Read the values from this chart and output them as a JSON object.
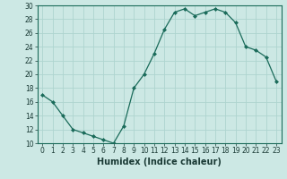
{
  "x": [
    0,
    1,
    2,
    3,
    4,
    5,
    6,
    7,
    8,
    9,
    10,
    11,
    12,
    13,
    14,
    15,
    16,
    17,
    18,
    19,
    20,
    21,
    22,
    23
  ],
  "y": [
    17,
    16,
    14,
    12,
    11.5,
    11,
    10.5,
    10,
    12.5,
    18,
    20,
    23,
    26.5,
    29,
    29.5,
    28.5,
    29,
    29.5,
    29,
    27.5,
    24,
    23.5,
    22.5,
    19
  ],
  "line_color": "#1a6b5a",
  "marker": "D",
  "marker_size": 2,
  "bg_color": "#cce8e4",
  "grid_color": "#aed4cf",
  "xlabel": "Humidex (Indice chaleur)",
  "ylim": [
    10,
    30
  ],
  "xlim": [
    -0.5,
    23.5
  ],
  "yticks": [
    10,
    12,
    14,
    16,
    18,
    20,
    22,
    24,
    26,
    28,
    30
  ],
  "xticks": [
    0,
    1,
    2,
    3,
    4,
    5,
    6,
    7,
    8,
    9,
    10,
    11,
    12,
    13,
    14,
    15,
    16,
    17,
    18,
    19,
    20,
    21,
    22,
    23
  ],
  "xlabel_fontsize": 7,
  "tick_fontsize": 5.5
}
